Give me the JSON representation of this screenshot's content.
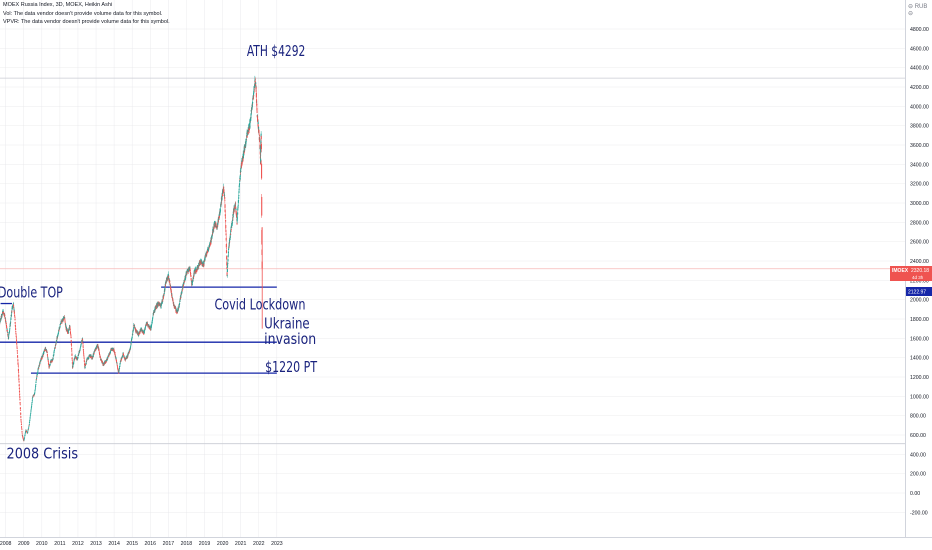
{
  "header": {
    "symbol_line": "MOEX Russia Index, 3D, MOEX, Heikin Ashi",
    "vol_note": "Vol: The data vendor doesn't provide volume data for this symbol.",
    "vpvr_note": "VPVR: The data vendor doesn't provide volume data for this symbol.",
    "currency_label": "⊖ RUB ⊖"
  },
  "price_tag": {
    "ticker": "IMOEX",
    "price": "2320.18",
    "countdown": "4d 3h",
    "level_tag": "2122.97"
  },
  "colors": {
    "up": "#26a69a",
    "down": "#ef5350",
    "line": "#1526a8",
    "annotation": "#1a237e",
    "axis_text": "#131722",
    "grid": "#e6e6ea",
    "price_tag": "#ef5350",
    "level_tag": "#1526a8"
  },
  "chart_data": {
    "type": "candlestick",
    "chart_style": "Heikin Ashi",
    "interval": "3D",
    "x_range": [
      2007.55,
      2023.0
    ],
    "ylim": [
      -300,
      4950
    ],
    "y_ticks": [
      -200,
      0,
      200,
      400,
      600,
      800,
      1000,
      1200,
      1400,
      1600,
      1800,
      2000,
      2200,
      2400,
      2600,
      2800,
      3000,
      3200,
      3400,
      3600,
      3800,
      4000,
      4200,
      4400,
      4600,
      4800
    ],
    "y_tick_labels": [
      "-200.00",
      "0.00",
      "200.00",
      "400.00",
      "600.00",
      "800.00",
      "1000.00",
      "1200.00",
      "1400.00",
      "1600.00",
      "1800.00",
      "2000.00",
      "2200.00",
      "2400.00",
      "2600.00",
      "2800.00",
      "3000.00",
      "3200.00",
      "3400.00",
      "3600.00",
      "3800.00",
      "4000.00",
      "4200.00",
      "4400.00",
      "4600.00",
      "4800.00"
    ],
    "x_ticks": [
      2008,
      2009,
      2010,
      2011,
      2012,
      2013,
      2014,
      2015,
      2016,
      2017,
      2018,
      2019,
      2020,
      2021,
      2022,
      2023
    ],
    "x_tick_labels": [
      "2008",
      "2009",
      "2010",
      "2011",
      "2012",
      "2013",
      "2014",
      "2015",
      "2016",
      "2017",
      "2018",
      "2019",
      "2020",
      "2021",
      "2022",
      "2023"
    ],
    "price_path": [
      [
        2007.55,
        1650
      ],
      [
        2007.7,
        1780
      ],
      [
        2007.85,
        1880
      ],
      [
        2007.95,
        1840
      ],
      [
        2008.05,
        1720
      ],
      [
        2008.15,
        1600
      ],
      [
        2008.25,
        1730
      ],
      [
        2008.35,
        1900
      ],
      [
        2008.43,
        1960
      ],
      [
        2008.5,
        1830
      ],
      [
        2008.6,
        1580
      ],
      [
        2008.7,
        1300
      ],
      [
        2008.78,
        1000
      ],
      [
        2008.85,
        750
      ],
      [
        2008.92,
        600
      ],
      [
        2009.0,
        540
      ],
      [
        2009.05,
        580
      ],
      [
        2009.12,
        650
      ],
      [
        2009.2,
        620
      ],
      [
        2009.3,
        700
      ],
      [
        2009.4,
        850
      ],
      [
        2009.5,
        1000
      ],
      [
        2009.6,
        1020
      ],
      [
        2009.7,
        1180
      ],
      [
        2009.8,
        1280
      ],
      [
        2009.95,
        1380
      ],
      [
        2010.05,
        1420
      ],
      [
        2010.2,
        1500
      ],
      [
        2010.3,
        1450
      ],
      [
        2010.4,
        1300
      ],
      [
        2010.5,
        1360
      ],
      [
        2010.6,
        1380
      ],
      [
        2010.75,
        1520
      ],
      [
        2010.9,
        1650
      ],
      [
        2011.05,
        1760
      ],
      [
        2011.15,
        1790
      ],
      [
        2011.25,
        1820
      ],
      [
        2011.35,
        1700
      ],
      [
        2011.45,
        1660
      ],
      [
        2011.55,
        1730
      ],
      [
        2011.62,
        1600
      ],
      [
        2011.7,
        1300
      ],
      [
        2011.85,
        1420
      ],
      [
        2011.95,
        1380
      ],
      [
        2012.1,
        1480
      ],
      [
        2012.25,
        1600
      ],
      [
        2012.38,
        1300
      ],
      [
        2012.5,
        1380
      ],
      [
        2012.65,
        1420
      ],
      [
        2012.8,
        1400
      ],
      [
        2012.95,
        1480
      ],
      [
        2013.1,
        1530
      ],
      [
        2013.25,
        1390
      ],
      [
        2013.4,
        1330
      ],
      [
        2013.55,
        1360
      ],
      [
        2013.7,
        1420
      ],
      [
        2013.85,
        1490
      ],
      [
        2014.0,
        1480
      ],
      [
        2014.15,
        1350
      ],
      [
        2014.25,
        1240
      ],
      [
        2014.35,
        1360
      ],
      [
        2014.5,
        1440
      ],
      [
        2014.6,
        1380
      ],
      [
        2014.75,
        1420
      ],
      [
        2014.9,
        1500
      ],
      [
        2015.0,
        1620
      ],
      [
        2015.1,
        1740
      ],
      [
        2015.2,
        1680
      ],
      [
        2015.35,
        1640
      ],
      [
        2015.5,
        1690
      ],
      [
        2015.65,
        1660
      ],
      [
        2015.8,
        1760
      ],
      [
        2015.95,
        1720
      ],
      [
        2016.05,
        1700
      ],
      [
        2016.15,
        1840
      ],
      [
        2016.3,
        1920
      ],
      [
        2016.45,
        1960
      ],
      [
        2016.6,
        1940
      ],
      [
        2016.75,
        2050
      ],
      [
        2016.88,
        2200
      ],
      [
        2017.0,
        2250
      ],
      [
        2017.1,
        2150
      ],
      [
        2017.25,
        1980
      ],
      [
        2017.4,
        1900
      ],
      [
        2017.5,
        1870
      ],
      [
        2017.6,
        1950
      ],
      [
        2017.75,
        2100
      ],
      [
        2017.9,
        2200
      ],
      [
        2018.0,
        2280
      ],
      [
        2018.1,
        2300
      ],
      [
        2018.2,
        2320
      ],
      [
        2018.3,
        2150
      ],
      [
        2018.45,
        2300
      ],
      [
        2018.55,
        2300
      ],
      [
        2018.65,
        2350
      ],
      [
        2018.8,
        2400
      ],
      [
        2018.95,
        2360
      ],
      [
        2019.05,
        2450
      ],
      [
        2019.15,
        2500
      ],
      [
        2019.3,
        2560
      ],
      [
        2019.45,
        2700
      ],
      [
        2019.55,
        2780
      ],
      [
        2019.7,
        2750
      ],
      [
        2019.85,
        2900
      ],
      [
        2019.95,
        3050
      ],
      [
        2020.05,
        3150
      ],
      [
        2020.12,
        3050
      ],
      [
        2020.2,
        2600
      ],
      [
        2020.25,
        2250
      ],
      [
        2020.32,
        2500
      ],
      [
        2020.45,
        2700
      ],
      [
        2020.6,
        2900
      ],
      [
        2020.7,
        3000
      ],
      [
        2020.8,
        2800
      ],
      [
        2020.9,
        3100
      ],
      [
        2021.0,
        3350
      ],
      [
        2021.1,
        3450
      ],
      [
        2021.2,
        3550
      ],
      [
        2021.35,
        3700
      ],
      [
        2021.5,
        3800
      ],
      [
        2021.6,
        3950
      ],
      [
        2021.7,
        4100
      ],
      [
        2021.8,
        4270
      ],
      [
        2021.85,
        4200
      ],
      [
        2021.9,
        3950
      ],
      [
        2021.97,
        3800
      ],
      [
        2022.05,
        3650
      ],
      [
        2022.1,
        3400
      ],
      [
        2022.13,
        3750
      ],
      [
        2022.15,
        3500
      ],
      [
        2022.17,
        2600
      ],
      [
        2022.19,
        2320
      ]
    ],
    "horizontal_lines": [
      {
        "y": 2130,
        "x_start": 2016.6,
        "x_end": 2023.0
      },
      {
        "y": 1560,
        "x_start": 2007.55,
        "x_end": 2023.0
      },
      {
        "y": 1240,
        "x_start": 2009.4,
        "x_end": 2023.0
      },
      {
        "y": 1960,
        "x_start": 2007.72,
        "x_end": 2008.35
      }
    ],
    "extra_levels": [
      {
        "y": 4292,
        "kind": "high"
      },
      {
        "y": 2320,
        "kind": "last"
      },
      {
        "y": 510,
        "kind": "low"
      }
    ]
  },
  "annotations": [
    {
      "key": "double_top",
      "text": "Double TOP",
      "x": 2007.57,
      "y": 2020
    },
    {
      "key": "crisis_2008",
      "text": "2008 Crisis",
      "x": 2008.05,
      "y": 355
    },
    {
      "key": "covid",
      "text": "Covid Lockdown",
      "x": 2019.55,
      "y": 1900
    },
    {
      "key": "ukraine",
      "text": "Ukraine",
      "x": 2022.3,
      "y": 1700
    },
    {
      "key": "invasion",
      "text": "invasion",
      "x": 2022.3,
      "y": 1540
    },
    {
      "key": "pt",
      "text": "$1220 PT",
      "x": 2022.35,
      "y": 1250
    },
    {
      "key": "ath",
      "text": "ATH $4292",
      "x": 2021.34,
      "y": 4520
    }
  ]
}
